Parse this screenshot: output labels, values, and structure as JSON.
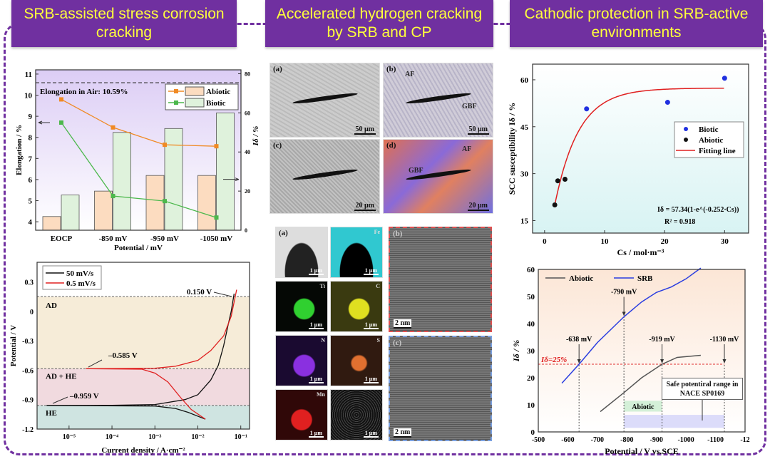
{
  "headers": [
    "SRB-assisted stress corrosion cracking",
    "Accelerated hydrogen cracking by SRB and CP",
    "Cathodic protection in SRB-active environments"
  ],
  "colors": {
    "frame": "#7030a0",
    "header_text": "#ffff3c",
    "abiotic_line": "#f08a24",
    "biotic_line": "#4cb84c",
    "abiotic_bar": "#fcdcc0",
    "biotic_bar": "#dff2dc"
  },
  "micrographs": {
    "sem": [
      {
        "label": "(a)",
        "scale": "50 μm"
      },
      {
        "label": "(b)",
        "scale": "50 μm",
        "tags": [
          "AF",
          "GBF"
        ]
      },
      {
        "label": "(c)",
        "scale": "20 μm"
      },
      {
        "label": "(d)",
        "scale": "20 μm",
        "tags": [
          "AF",
          "GBF"
        ]
      }
    ],
    "eds": {
      "label": "(a)",
      "scale": "1 μm",
      "elements": [
        "",
        "Fe",
        "Ti",
        "C",
        "N",
        "S",
        "Mn",
        ""
      ]
    },
    "hrtem": [
      {
        "label": "(b)",
        "scale": "2 nm"
      },
      {
        "label": "(c)",
        "scale": "2 nm"
      }
    ]
  },
  "chart_data": [
    {
      "type": "bar",
      "title": "",
      "categories": [
        "EOCP",
        "-850 mV",
        "-950 mV",
        "-1050 mV"
      ],
      "xlabel": "Potential / mV",
      "ylabel": "Elongation / %",
      "ylabel_right": "Iδ / %",
      "ylim": [
        3.6,
        11.2
      ],
      "ylim_right": [
        0,
        82
      ],
      "yticks": [
        4,
        5,
        6,
        7,
        8,
        9,
        10,
        11
      ],
      "yticks_right": [
        0,
        20,
        40,
        60,
        80
      ],
      "annotation": "Elongation in Air: 10.59%",
      "air_elongation": 10.59,
      "legend": "top-right",
      "bar_series": [
        {
          "name": "Abiotic",
          "values": [
            7,
            20,
            28,
            28
          ]
        },
        {
          "name": "Biotic",
          "values": [
            18,
            50,
            52,
            60
          ]
        }
      ],
      "line_series": [
        {
          "name": "Abiotic",
          "values": [
            9.8,
            8.47,
            7.65,
            7.58
          ]
        },
        {
          "name": "Biotic",
          "values": [
            8.7,
            5.22,
            4.98,
            4.2
          ]
        }
      ]
    },
    {
      "type": "line",
      "xlabel": "Current density / A·cm⁻²",
      "ylabel": "Potential / V",
      "xscale": "log",
      "xlim": [
        1.8e-06,
        0.16
      ],
      "ylim": [
        -1.2,
        0.5
      ],
      "xticks": [
        "10⁻⁵",
        "10⁻⁴",
        "10⁻³",
        "10⁻²",
        "10⁻¹"
      ],
      "yticks": [
        0.3,
        0.0,
        -0.3,
        -0.6,
        -0.9,
        -1.2
      ],
      "legend": "top-left",
      "regions": [
        {
          "name": "AD",
          "from": -0.585,
          "to": 0.15
        },
        {
          "name": "AD + HE",
          "from": -0.959,
          "to": -0.585
        },
        {
          "name": "HE",
          "from": -1.2,
          "to": -0.959
        }
      ],
      "annotations": [
        "0.150 V",
        "–0.585 V",
        "–0.959 V"
      ],
      "series": [
        {
          "name": "50 mV/s",
          "color": "#111111",
          "branches": [
            [
              [
                3e-06,
                -0.959
              ],
              [
                0.0001,
                -0.958
              ],
              [
                0.001,
                -0.95
              ],
              [
                0.005,
                -0.9
              ],
              [
                0.01,
                -0.85
              ],
              [
                0.02,
                -0.7
              ],
              [
                0.03,
                -0.55
              ],
              [
                0.04,
                -0.35
              ],
              [
                0.05,
                -0.15
              ],
              [
                0.06,
                0.0
              ],
              [
                0.07,
                0.18
              ]
            ],
            [
              [
                3e-06,
                -0.959
              ],
              [
                0.001,
                -0.965
              ],
              [
                0.003,
                -0.99
              ],
              [
                0.006,
                -1.03
              ],
              [
                0.015,
                -1.1
              ]
            ]
          ]
        },
        {
          "name": "0.5 mV/s",
          "color": "#e02020",
          "branches": [
            [
              [
                2.5e-05,
                -0.585
              ],
              [
                0.001,
                -0.58
              ],
              [
                0.003,
                -0.56
              ],
              [
                0.01,
                -0.5
              ],
              [
                0.02,
                -0.4
              ],
              [
                0.04,
                -0.25
              ],
              [
                0.06,
                -0.05
              ],
              [
                0.08,
                0.22
              ]
            ],
            [
              [
                2.5e-05,
                -0.585
              ],
              [
                0.0005,
                -0.59
              ],
              [
                0.001,
                -0.63
              ],
              [
                0.002,
                -0.72
              ],
              [
                0.004,
                -0.88
              ],
              [
                0.007,
                -1.0
              ],
              [
                0.015,
                -1.1
              ]
            ]
          ]
        }
      ]
    },
    {
      "type": "scatter",
      "xlabel": "Cs / mol·m⁻³",
      "ylabel": "SCC susceptibility Iδ / %",
      "xlim": [
        -2,
        34
      ],
      "ylim": [
        11,
        65
      ],
      "xticks": [
        0,
        10,
        20,
        30
      ],
      "yticks": [
        15,
        30,
        45,
        60
      ],
      "legend": "right",
      "series": [
        {
          "name": "Biotic",
          "color": "#2030e0",
          "points": [
            [
              7,
              50.7
            ],
            [
              20.5,
              52.8
            ],
            [
              30,
              60.5
            ]
          ]
        },
        {
          "name": "Abiotic",
          "color": "#111111",
          "points": [
            [
              1.7,
              20
            ],
            [
              2.2,
              27.7
            ],
            [
              3.4,
              28.2
            ]
          ]
        }
      ],
      "fit": {
        "name": "Fitting line",
        "a": 57.34,
        "b": 0.252,
        "x_range": [
          1.7,
          30
        ],
        "equation": "Iδ = 57.34(1-e^(-0.252·Cs))",
        "r2": "R² = 0.918"
      }
    },
    {
      "type": "line",
      "xlabel": "Potential / V vs.SCE",
      "ylabel": "Iδ / %",
      "xlim": [
        -500,
        -1200
      ],
      "ylim": [
        0,
        60
      ],
      "xticks": [
        "-500",
        "-600",
        "-700",
        "-800",
        "-900",
        "-1000",
        "-1100",
        "-12"
      ],
      "yticks": [
        0,
        10,
        20,
        30,
        40,
        50,
        60
      ],
      "legend": "top",
      "series": [
        {
          "name": "Abiotic",
          "color": "#555555",
          "points": [
            [
              -710,
              7.5
            ],
            [
              -790,
              14.5
            ],
            [
              -850,
              20
            ],
            [
              -919,
              25
            ],
            [
              -970,
              27.5
            ],
            [
              -1050,
              28.3
            ]
          ]
        },
        {
          "name": "SRB",
          "color": "#2a3de0",
          "points": [
            [
              -580,
              18
            ],
            [
              -638,
              25
            ],
            [
              -700,
              33
            ],
            [
              -790,
              42.5
            ],
            [
              -850,
              48
            ],
            [
              -900,
              51.5
            ],
            [
              -950,
              53.5
            ],
            [
              -1000,
              56.5
            ],
            [
              -1050,
              60.5
            ]
          ]
        }
      ],
      "threshold": {
        "label": "Iδ=25%",
        "value": 25
      },
      "markers": [
        {
          "label": "-638 mV",
          "x": -638
        },
        {
          "label": "-790 mV",
          "x": -790
        },
        {
          "label": "-919 mV",
          "x": -919
        },
        {
          "label": "-1130 mV",
          "x": -1130
        }
      ],
      "box_label": "Safe potentiral range in NACE SP0169",
      "box_line1": "Safe potentiral range",
      "box_line2": "in NACE SP0169",
      "abiotic_range_label": "Abiotic"
    }
  ]
}
